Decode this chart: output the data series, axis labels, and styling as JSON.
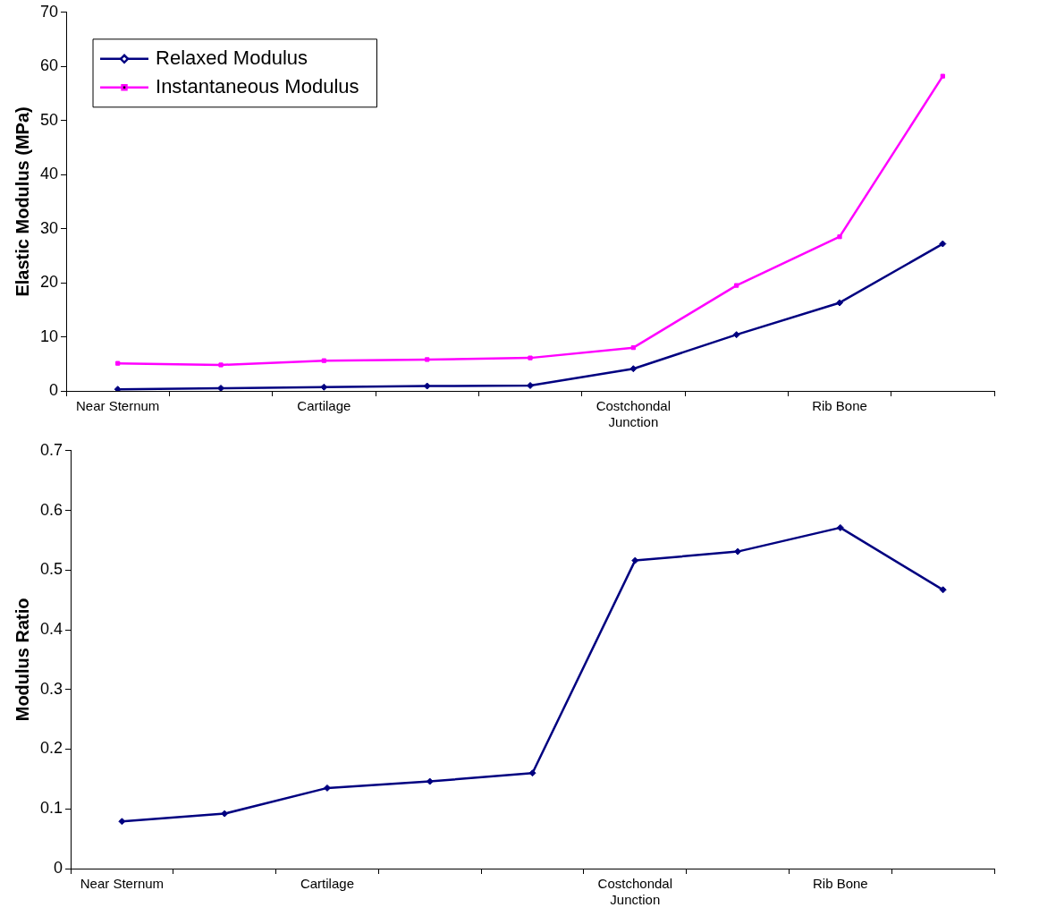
{
  "chart_data": [
    {
      "type": "line",
      "ylabel": "Elastic Modulus (MPa)",
      "categories": [
        "Near Sternum",
        null,
        "Cartilage",
        null,
        null,
        "Costchondal Junction",
        null,
        "Rib Bone",
        null
      ],
      "ylim": [
        0,
        70
      ],
      "yticks": [
        0,
        10,
        20,
        30,
        40,
        50,
        60,
        70
      ],
      "grid": false,
      "legend": "top left",
      "line_style": "solid",
      "series": [
        {
          "name": "Relaxed Modulus",
          "color": "#000080",
          "marker": "diamond",
          "values": [
            0.3,
            0.5,
            0.7,
            0.9,
            1.0,
            4.1,
            10.4,
            16.3,
            27.2
          ]
        },
        {
          "name": "Instantaneous Modulus",
          "color": "#ff00ff",
          "marker": "square",
          "values": [
            5.1,
            4.8,
            5.6,
            5.8,
            6.1,
            8.0,
            19.5,
            28.5,
            58.2
          ]
        }
      ]
    },
    {
      "type": "line",
      "ylabel": "Modulus Ratio",
      "categories": [
        "Near Sternum",
        null,
        "Cartilage",
        null,
        null,
        "Costchondal Junction",
        null,
        "Rib Bone",
        null
      ],
      "ylim": [
        0,
        0.7
      ],
      "yticks": [
        0,
        0.1,
        0.2,
        0.3,
        0.4,
        0.5,
        0.6,
        0.7
      ],
      "grid": false,
      "legend": false,
      "line_style": "solid",
      "series": [
        {
          "color": "#000080",
          "marker": "diamond",
          "values": [
            0.079,
            0.092,
            0.135,
            0.146,
            0.16,
            0.516,
            0.531,
            0.571,
            0.467
          ]
        }
      ]
    }
  ]
}
